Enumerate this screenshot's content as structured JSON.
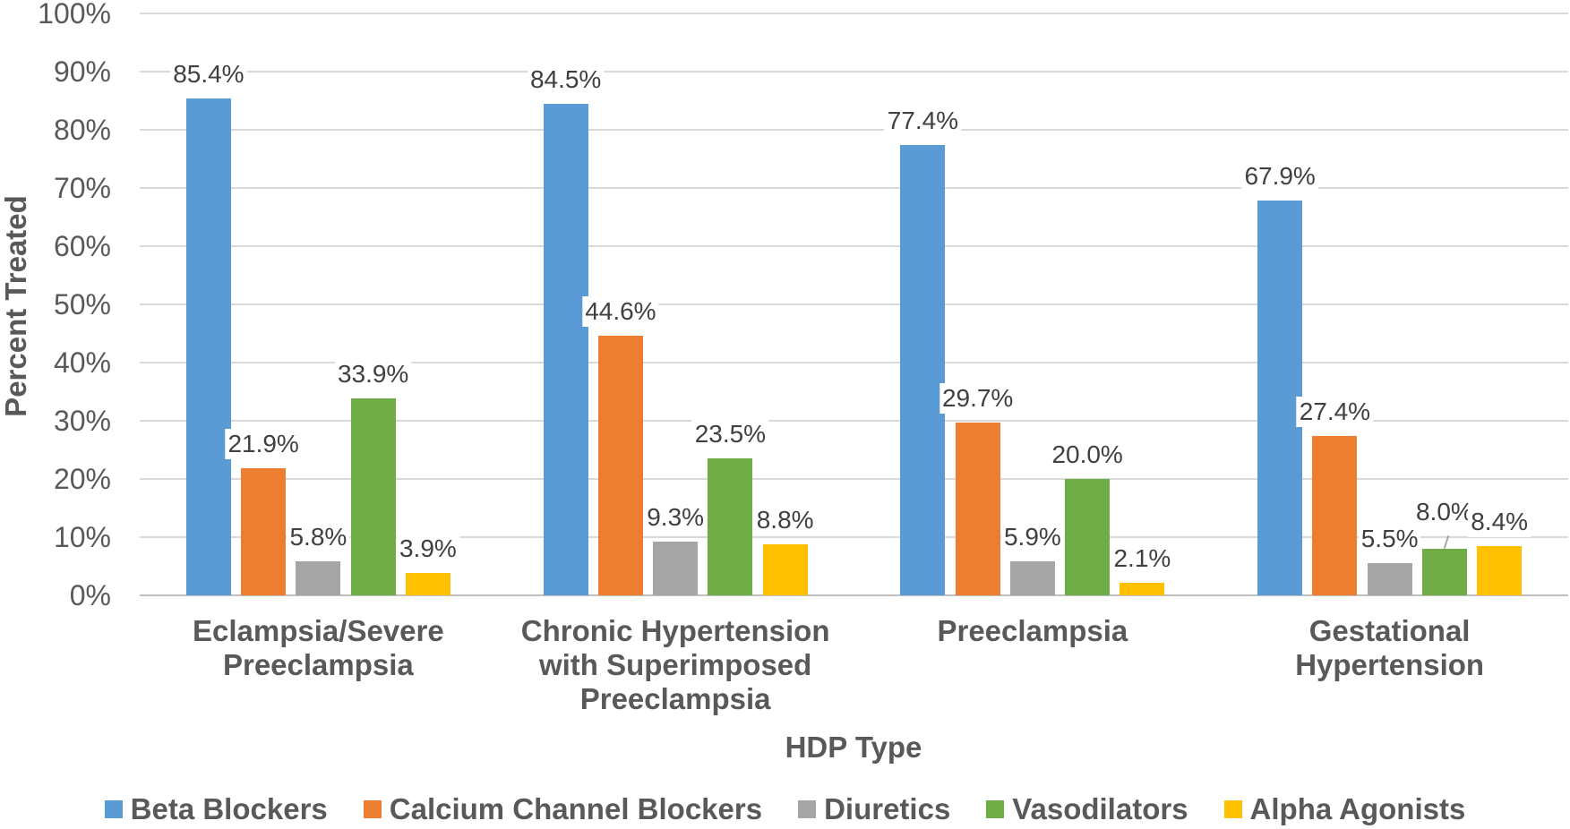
{
  "chart_data": {
    "type": "bar",
    "title": "",
    "xlabel": "HDP Type",
    "ylabel": "Percent Treated",
    "ylim": [
      0,
      100
    ],
    "ytick_step": 10,
    "ytick_suffix": "%",
    "grid": true,
    "legend_position": "bottom",
    "data_labels": true,
    "data_label_suffix": "%",
    "categories": [
      "Eclampsia/Severe\nPreeclampsia",
      "Chronic Hypertension\nwith Superimposed\nPreeclampsia",
      "Preeclampsia",
      "Gestational\nHypertension"
    ],
    "series": [
      {
        "name": "Beta Blockers",
        "color": "#5B9BD5",
        "values": [
          85.4,
          84.5,
          77.4,
          67.9
        ]
      },
      {
        "name": "Calcium Channel Blockers",
        "color": "#ED7D31",
        "values": [
          21.9,
          44.6,
          29.7,
          27.4
        ]
      },
      {
        "name": "Diuretics",
        "color": "#A5A5A5",
        "values": [
          5.8,
          9.3,
          5.9,
          5.5
        ]
      },
      {
        "name": "Vasodilators",
        "color": "#70AD47",
        "values": [
          33.9,
          23.5,
          20.0,
          8.0
        ]
      },
      {
        "name": "Alpha Agonists",
        "color": "#FFC000",
        "values": [
          3.9,
          8.8,
          2.1,
          8.4
        ]
      }
    ],
    "data_label_texts": [
      [
        "85.4%",
        "84.5%",
        "77.4%",
        "67.9%"
      ],
      [
        "21.9%",
        "44.6%",
        "29.7%",
        "27.4%"
      ],
      [
        "5.8%",
        "9.3%",
        "5.9%",
        "5.5%"
      ],
      [
        "33.9%",
        "23.5%",
        "20.0%",
        "8.0%"
      ],
      [
        "3.9%",
        "8.8%",
        "2.1%",
        "8.4%"
      ]
    ],
    "leader_line_point": {
      "series_index": 3,
      "category_index": 3
    }
  },
  "colors": {
    "axis_text": "#595959",
    "data_label_text": "#404040",
    "gridline": "#D9D9D9",
    "axis_line": "#BFBFBF",
    "background": "#FFFFFF"
  }
}
